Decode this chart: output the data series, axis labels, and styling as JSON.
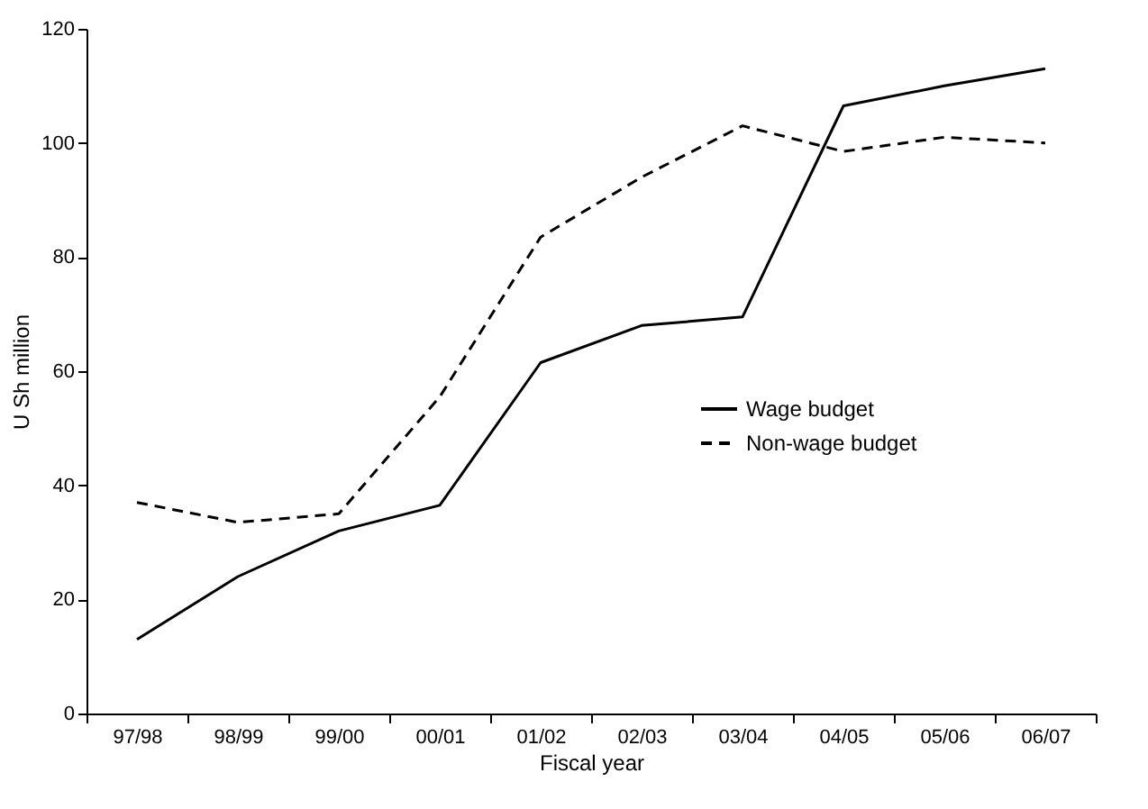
{
  "chart_data": {
    "type": "line",
    "xlabel": "Fiscal year",
    "ylabel": "U Sh million",
    "categories": [
      "97/98",
      "98/99",
      "99/00",
      "00/01",
      "01/02",
      "02/03",
      "03/04",
      "04/05",
      "05/06",
      "06/07"
    ],
    "series": [
      {
        "name": "Wage budget",
        "color": "#000000",
        "line_style": "solid",
        "values": [
          13,
          24,
          32,
          36.5,
          61.5,
          68,
          69.5,
          106.5,
          110,
          113
        ]
      },
      {
        "name": "Non-wage budget",
        "color": "#000000",
        "line_style": "dashed",
        "values": [
          37,
          33.5,
          35,
          55.5,
          83.5,
          94,
          103,
          98.5,
          101,
          100
        ]
      }
    ],
    "ylim": [
      0,
      120
    ],
    "yticks": [
      0,
      20,
      40,
      60,
      80,
      100,
      120
    ],
    "grid": false,
    "legend": "right",
    "marker": "none"
  }
}
